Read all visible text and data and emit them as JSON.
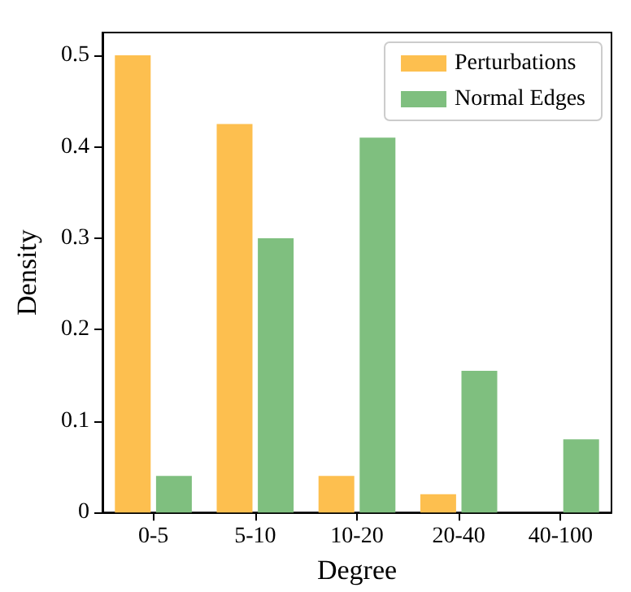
{
  "chart_data": {
    "type": "bar",
    "xlabel": "Degree",
    "ylabel": "Density",
    "categories": [
      "0-5",
      "5-10",
      "10-20",
      "20-40",
      "40-100"
    ],
    "series": [
      {
        "name": "Perturbations",
        "color": "#fdbf4f",
        "values": [
          0.5,
          0.425,
          0.04,
          0.02,
          null
        ]
      },
      {
        "name": "Normal Edges",
        "color": "#7fbf7f",
        "values": [
          0.04,
          0.3,
          0.41,
          0.155,
          0.08
        ]
      }
    ],
    "ylim": [
      0,
      0.525
    ],
    "yticks": [
      0,
      0.1,
      0.2,
      0.3,
      0.4,
      0.5
    ],
    "legend": "top right",
    "grid": false
  }
}
